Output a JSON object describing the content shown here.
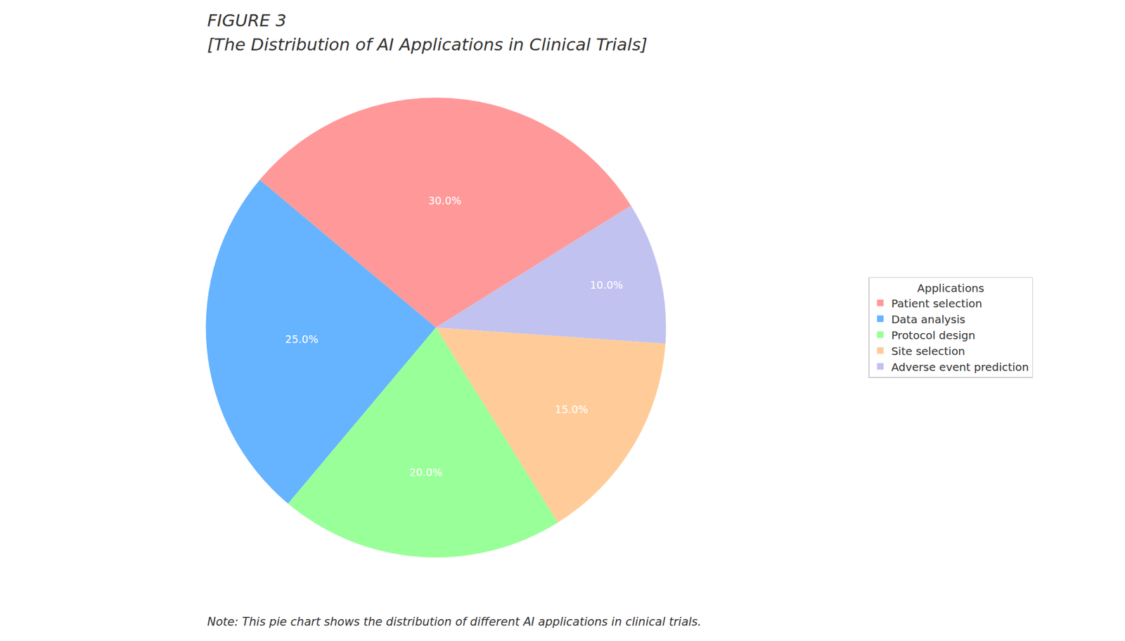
{
  "chart_data": {
    "type": "pie",
    "title": "FIGURE 3",
    "subtitle": "[The Distribution of AI Applications in Clinical Trials]",
    "categories": [
      "Patient selection",
      "Data analysis",
      "Protocol design",
      "Site selection",
      "Adverse event prediction"
    ],
    "values": [
      30,
      25,
      20,
      15,
      10
    ],
    "value_labels": [
      "30.0%",
      "25.0%",
      "20.0%",
      "15.0%",
      "10.0%"
    ],
    "colors": [
      "#ff9999",
      "#66b3ff",
      "#99ff99",
      "#ffcc99",
      "#c2c2f0"
    ],
    "data_labels": true,
    "legend_title": "Applications",
    "legend": "right",
    "annotations": [
      "Note: This pie chart shows the distribution of different AI applications in clinical trials."
    ]
  }
}
